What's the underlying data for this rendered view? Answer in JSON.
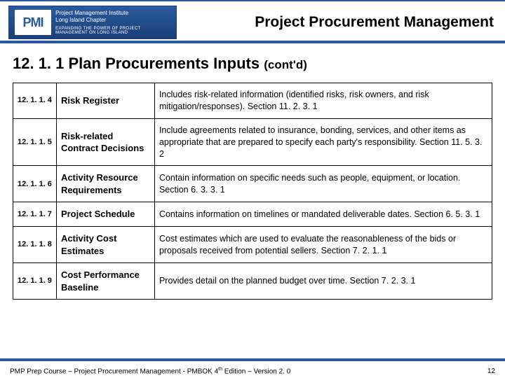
{
  "branding": {
    "logo_abbr": "PMI",
    "logo_line1": "Project Management Institute",
    "logo_line2": "Long Island Chapter",
    "logo_tagline": "EXPANDING THE POWER OF PROJECT MANAGEMENT ON LONG ISLAND"
  },
  "header_title": "Project Procurement Management",
  "section": {
    "heading_main": "12. 1. 1 Plan Procurements Inputs ",
    "heading_suffix": "(cont'd)"
  },
  "rows": [
    {
      "num": "12. 1. 1. 4",
      "name": "Risk Register",
      "desc": "Includes risk-related information (identified risks, risk owners, and risk mitigation/responses). Section 11. 2. 3. 1"
    },
    {
      "num": "12. 1. 1. 5",
      "name": "Risk-related Contract Decisions",
      "desc": "Include agreements related to insurance, bonding, services, and other items as appropriate that are prepared to specify each party's responsibility. Section 11. 5. 3. 2"
    },
    {
      "num": "12. 1. 1. 6",
      "name": "Activity Resource Requirements",
      "desc": "Contain information on specific needs such as people, equipment, or location. Section 6. 3. 3. 1"
    },
    {
      "num": "12. 1. 1. 7",
      "name": "Project Schedule",
      "desc": "Contains information on timelines or mandated deliverable dates. Section 6. 5. 3. 1"
    },
    {
      "num": "12. 1. 1. 8",
      "name": "Activity Cost Estimates",
      "desc": "Cost estimates which are used to evaluate the reasonableness of the bids or proposals received from potential sellers. Section 7. 2. 1. 1"
    },
    {
      "num": "12. 1. 1. 9",
      "name": "Cost Performance Baseline",
      "desc": "Provides detail on the planned budget over time. Section 7. 2. 3. 1"
    }
  ],
  "footer": {
    "text_left_a": "PMP Prep Course – Project Procurement Management - PMBOK 4",
    "text_left_sup": "th",
    "text_left_b": " Edition – Version 2. 0",
    "page_number": "12"
  },
  "colors": {
    "brand_blue": "#2a5a9e",
    "brand_blue_dark": "#1b3f78",
    "background": "#ffffff",
    "text": "#000000"
  }
}
